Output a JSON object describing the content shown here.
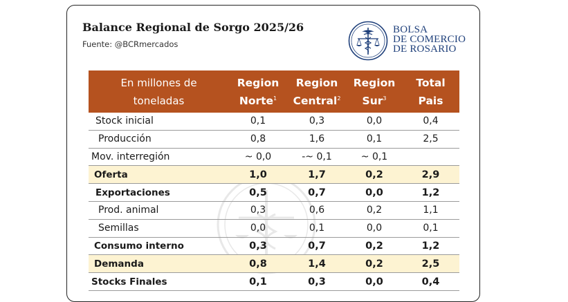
{
  "header": {
    "title": "Balance Regional de Sorgo 2025/26",
    "source": "Fuente: @BCRmercados"
  },
  "logo": {
    "icon": "bcr-emblem-icon",
    "lines": [
      "BOLSA",
      "DE COMERCIO",
      "DE ROSARIO"
    ],
    "color": "#1e3f7a"
  },
  "table": {
    "units_label_line1": "En millones de",
    "units_label_line2": "toneladas",
    "columns": [
      {
        "line1": "Region",
        "line2": "Norte",
        "note": "1"
      },
      {
        "line1": "Region",
        "line2": "Central",
        "note": "2"
      },
      {
        "line1": "Region",
        "line2": "Sur",
        "note": "3"
      },
      {
        "line1": "Total",
        "line2": "Pais",
        "note": ""
      }
    ],
    "header_color": "#b5521f",
    "highlight_color": "#fdf3d2",
    "rows": [
      {
        "label": "Stock inicial",
        "values": [
          "0,1",
          "0,3",
          "0,0",
          "0,4"
        ]
      },
      {
        "label": "Producción",
        "values": [
          "0,8",
          "1,6",
          "0,1",
          "2,5"
        ]
      },
      {
        "label": "Mov. interregión",
        "values": [
          "~ 0,0",
          "-~ 0,1",
          "~ 0,1",
          ""
        ]
      },
      {
        "label": "Oferta",
        "values": [
          "1,0",
          "1,7",
          "0,2",
          "2,9"
        ]
      },
      {
        "label": "Exportaciones",
        "values": [
          "0,5",
          "0,7",
          "0,0",
          "1,2"
        ]
      },
      {
        "label": "Prod. animal",
        "values": [
          "0,3",
          "0,6",
          "0,2",
          "1,1"
        ]
      },
      {
        "label": "Semillas",
        "values": [
          "0,0",
          "0,1",
          "0,0",
          "0,1"
        ]
      },
      {
        "label": "Consumo interno",
        "values": [
          "0,3",
          "0,7",
          "0,2",
          "1,2"
        ]
      },
      {
        "label": "Demanda",
        "values": [
          "0,8",
          "1,4",
          "0,2",
          "2,5"
        ]
      },
      {
        "label": "Stocks Finales",
        "values": [
          "0,1",
          "0,3",
          "0,0",
          "0,4"
        ]
      }
    ]
  }
}
